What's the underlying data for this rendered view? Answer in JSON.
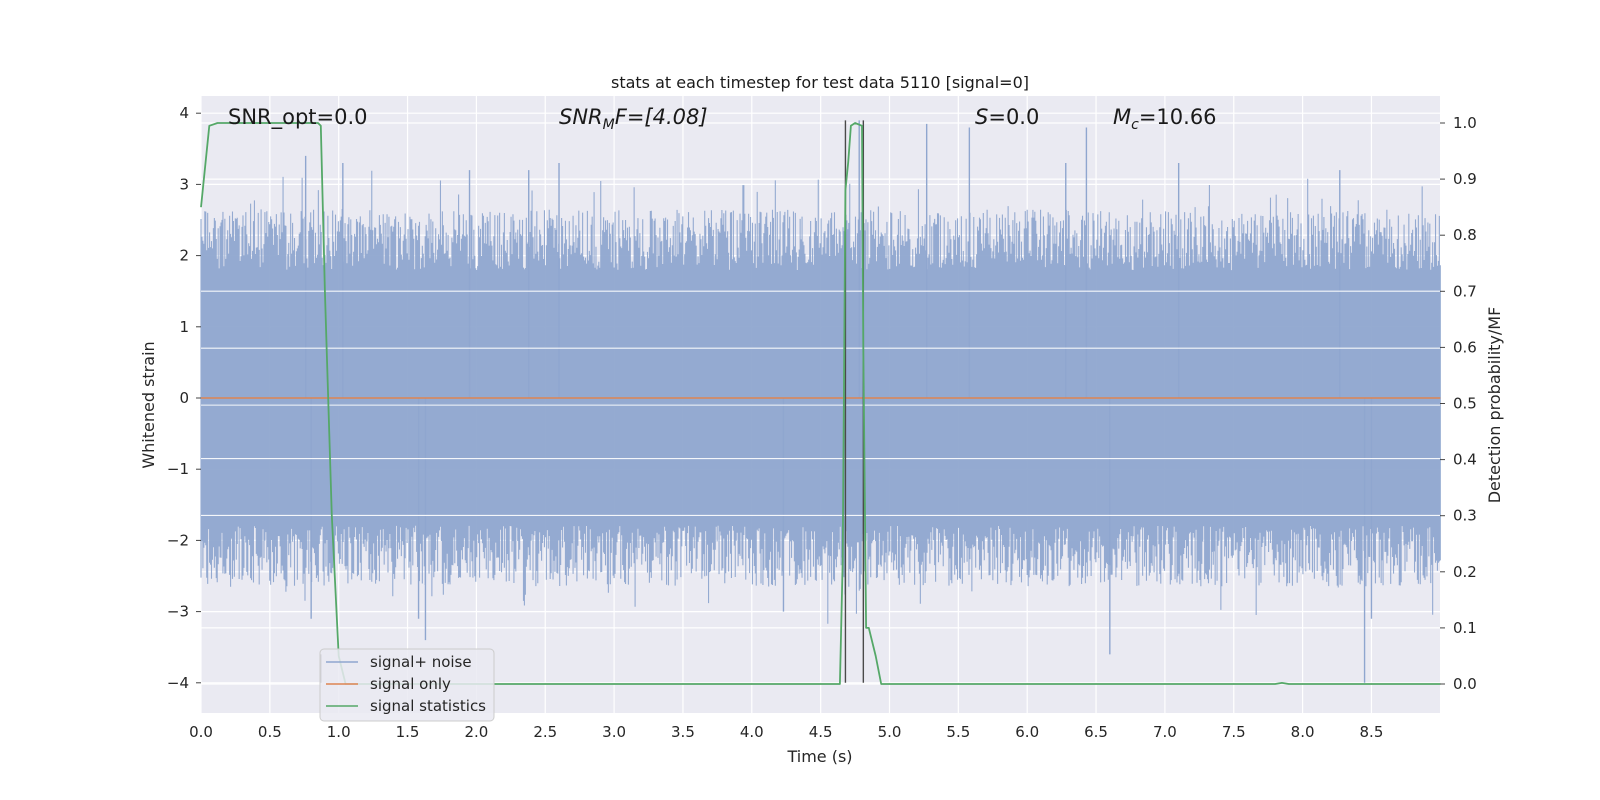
{
  "chart_data": {
    "type": "line",
    "title": "stats at each timestep for test data 5110 [signal=0]",
    "xlabel": "Time (s)",
    "ylabel": "Whitened strain",
    "y2label": "Detection probability/MF",
    "xlim": [
      0.0,
      9.0
    ],
    "ylim": [
      -4.2,
      4.2
    ],
    "y2lim": [
      -0.05,
      1.05
    ],
    "xticks": [
      "0.0",
      "0.5",
      "1.0",
      "1.5",
      "2.0",
      "2.5",
      "3.0",
      "3.5",
      "4.0",
      "4.5",
      "5.0",
      "5.5",
      "6.0",
      "6.5",
      "7.0",
      "7.5",
      "8.0",
      "8.5"
    ],
    "yticks": [
      "4",
      "3",
      "2",
      "1",
      "0",
      "−1",
      "−2",
      "−3",
      "−4"
    ],
    "y2ticks": [
      "1.0",
      "0.9",
      "0.8",
      "0.7",
      "0.6",
      "0.5",
      "0.4",
      "0.3",
      "0.2",
      "0.1",
      "0.0"
    ],
    "grid": true,
    "legend_position": "lower-left",
    "annotations": {
      "snr_opt": "SNR_opt=0.0",
      "snr_mf_base": "SNR",
      "snr_mf_sub": "M",
      "snr_mf_rest": "F=[4.08]",
      "s_sym": "S",
      "s_val": "=0.0",
      "mc_sym": "M",
      "mc_sub": "c",
      "mc_val": "=10.66"
    },
    "series": [
      {
        "name": "signal+ noise",
        "color": "#8fa6cf",
        "description": "whitened noise, roughly within ±2.5 with spikes to ±3.9",
        "envelope_upper_base": 2.05,
        "envelope_lower_base": -2.05,
        "peaks": [
          {
            "x": 0.76,
            "y": 3.4
          },
          {
            "x": 1.03,
            "y": 3.3
          },
          {
            "x": 1.95,
            "y": 3.2
          },
          {
            "x": 2.38,
            "y": 3.2
          },
          {
            "x": 2.6,
            "y": 3.3
          },
          {
            "x": 4.78,
            "y": 3.9
          },
          {
            "x": 5.27,
            "y": 3.85
          },
          {
            "x": 5.58,
            "y": 3.8
          },
          {
            "x": 6.28,
            "y": 3.3
          },
          {
            "x": 6.43,
            "y": 3.8
          },
          {
            "x": 7.1,
            "y": 3.3
          },
          {
            "x": 8.27,
            "y": 3.2
          },
          {
            "x": 0.8,
            "y": -3.1
          },
          {
            "x": 1.58,
            "y": -3.1
          },
          {
            "x": 1.63,
            "y": -3.4
          },
          {
            "x": 4.23,
            "y": -3.0
          },
          {
            "x": 6.6,
            "y": -3.6
          },
          {
            "x": 8.45,
            "y": -4.0
          },
          {
            "x": 8.5,
            "y": -3.1
          }
        ]
      },
      {
        "name": "signal only",
        "color": "#dd8452",
        "x": [
          0.0,
          9.0
        ],
        "y": [
          0.0,
          0.0
        ]
      },
      {
        "name": "signal statistics",
        "color": "#55a868",
        "axis": "right",
        "x": [
          0.0,
          0.06,
          0.12,
          0.85,
          0.87,
          0.9,
          0.95,
          1.0,
          1.05,
          4.6,
          4.64,
          4.66,
          4.68,
          4.7,
          4.72,
          4.75,
          4.8,
          4.81,
          4.83,
          4.85,
          4.9,
          4.94,
          4.97,
          7.8,
          7.85,
          7.9,
          9.0
        ],
        "y": [
          0.85,
          0.995,
          1.0,
          1.0,
          0.995,
          0.7,
          0.3,
          0.05,
          0.0,
          0.0,
          0.0,
          0.22,
          0.88,
          0.93,
          0.995,
          1.0,
          0.995,
          0.6,
          0.1,
          0.1,
          0.05,
          0.0,
          0.0,
          0.0,
          0.002,
          0.0,
          0.0
        ]
      }
    ],
    "vlines": [
      {
        "x": 0.87,
        "y_from": -4.0,
        "y_to": -3.6
      },
      {
        "x": 4.68,
        "y_from": -4.0,
        "y_to": 3.9
      },
      {
        "x": 4.81,
        "y_from": -4.0,
        "y_to": 3.9
      }
    ]
  }
}
